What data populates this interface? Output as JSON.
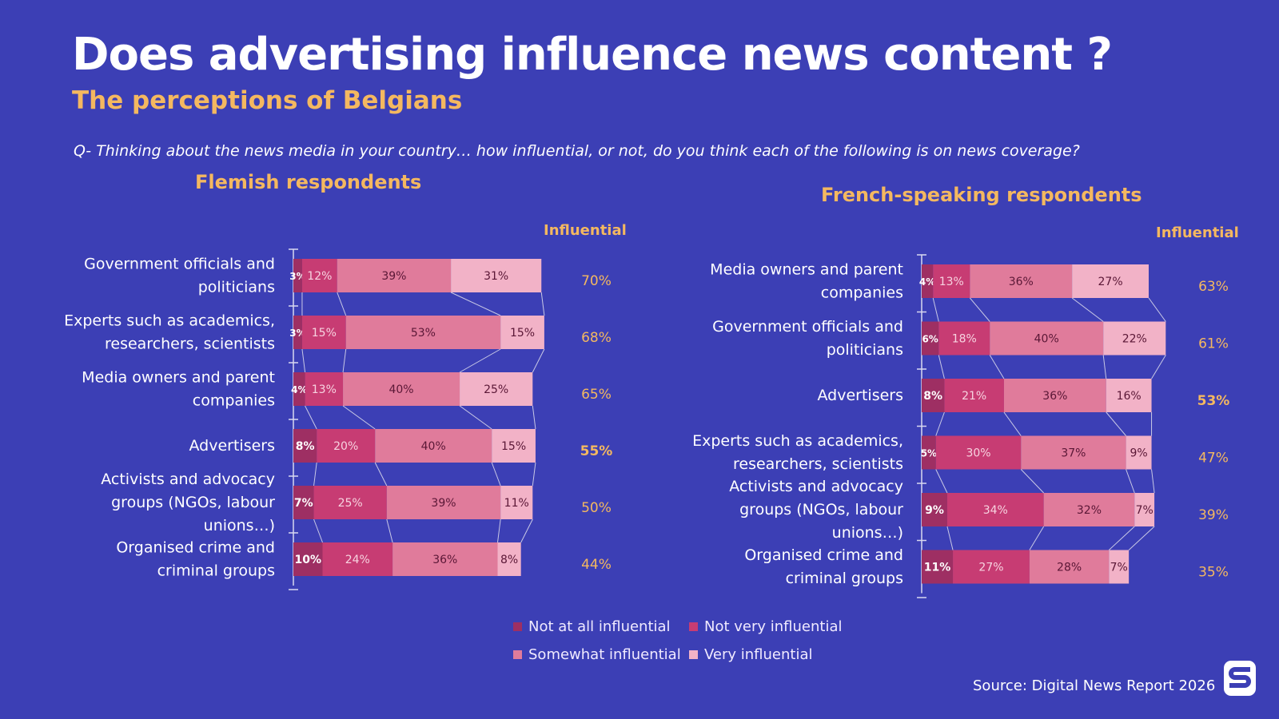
{
  "title": "Does advertising influence news content ?",
  "subtitle": "The perceptions of Belgians",
  "question": "Q- Thinking about the news media in your country… how influential, or not, do you think each of the following  is on news coverage?",
  "source": "Source: Digital News Report 2026",
  "colors": {
    "background": "#3c3fb5",
    "accent": "#f4b860",
    "not_at_all": "#9e2f63",
    "not_very": "#c73c73",
    "somewhat": "#e07b9b",
    "very": "#f2b2c7"
  },
  "legend": [
    {
      "label": "Not at all influential",
      "color": "#9e2f63"
    },
    {
      "label": "Not very influential",
      "color": "#c73c73"
    },
    {
      "label": "Somewhat influential",
      "color": "#e07b9b"
    },
    {
      "label": "Very influential",
      "color": "#f2b2c7"
    }
  ],
  "chart_data": [
    {
      "type": "bar",
      "stacked": true,
      "orientation": "horizontal",
      "title": "Flemish respondents",
      "total_label": "Influential",
      "categories": [
        "Government officials and politicians",
        "Experts such as academics, researchers, scientists",
        "Media owners and parent companies",
        "Advertisers",
        "Activists and advocacy groups (NGOs, labour unions…)",
        "Organised crime and criminal groups"
      ],
      "series": [
        {
          "name": "Not at all influential",
          "values": [
            3,
            3,
            4,
            8,
            7,
            10
          ]
        },
        {
          "name": "Not very influential",
          "values": [
            12,
            15,
            13,
            20,
            25,
            24
          ]
        },
        {
          "name": "Somewhat influential",
          "values": [
            39,
            53,
            40,
            40,
            39,
            36
          ]
        },
        {
          "name": "Very influential",
          "values": [
            31,
            15,
            25,
            15,
            11,
            8
          ]
        }
      ],
      "influential": [
        "70%",
        "68%",
        "65%",
        "55%",
        "50%",
        "44%"
      ],
      "highlight": "Advertisers"
    },
    {
      "type": "bar",
      "stacked": true,
      "orientation": "horizontal",
      "title": "French-speaking respondents",
      "total_label": "Influential",
      "categories": [
        "Media owners and parent companies",
        "Government officials and politicians",
        "Advertisers",
        "Experts such as academics, researchers, scientists",
        "Activists and advocacy groups (NGOs, labour unions…)",
        "Organised crime and criminal groups"
      ],
      "series": [
        {
          "name": "Not at all influential",
          "values": [
            4,
            6,
            8,
            5,
            9,
            11
          ]
        },
        {
          "name": "Not very influential",
          "values": [
            13,
            18,
            21,
            30,
            34,
            27
          ]
        },
        {
          "name": "Somewhat influential",
          "values": [
            36,
            40,
            36,
            37,
            32,
            28
          ]
        },
        {
          "name": "Very influential",
          "values": [
            27,
            22,
            16,
            9,
            7,
            7
          ]
        }
      ],
      "influential": [
        "63%",
        "61%",
        "53%",
        "47%",
        "39%",
        "35%"
      ],
      "highlight": "Advertisers"
    }
  ]
}
